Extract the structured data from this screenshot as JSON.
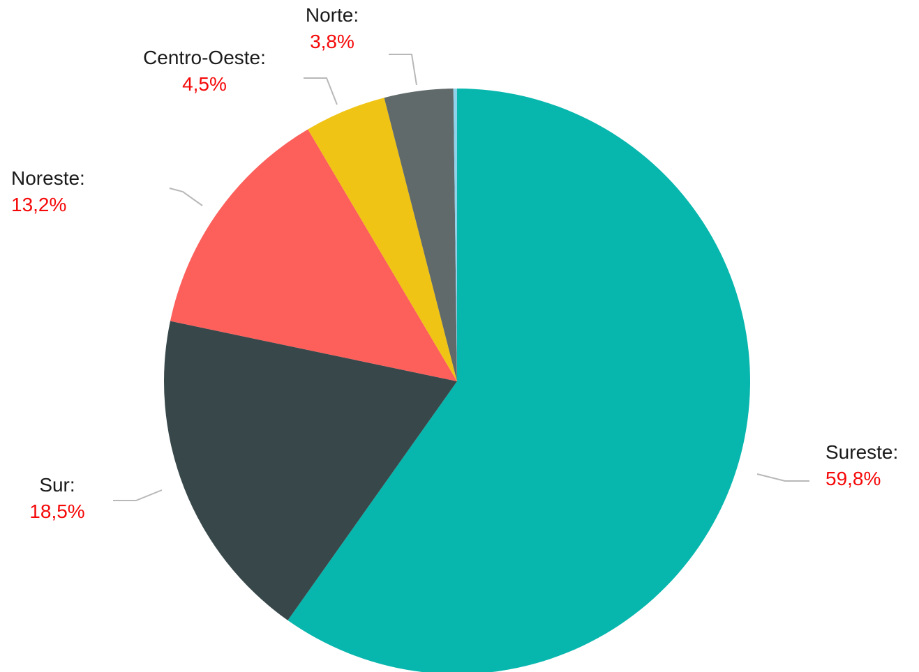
{
  "chart_data": {
    "type": "pie",
    "title": "",
    "slices": [
      {
        "label": "Sureste:",
        "value_text": "59,8%",
        "value": 59.8,
        "color": "#07b6ad"
      },
      {
        "label": "Sur:",
        "value_text": "18,5%",
        "value": 18.5,
        "color": "#37474a"
      },
      {
        "label": "Noreste:",
        "value_text": "13,2%",
        "value": 13.2,
        "color": "#fd5f5b"
      },
      {
        "label": "Centro-Oeste:",
        "value_text": "4,5%",
        "value": 4.5,
        "color": "#f0c414"
      },
      {
        "label": "Norte:",
        "value_text": "3,8%",
        "value": 3.8,
        "color": "#616a6b"
      },
      {
        "label": "",
        "value_text": "",
        "value": 0.2,
        "color": "#8fd2ea"
      }
    ],
    "value_label_color": "#f50808"
  }
}
